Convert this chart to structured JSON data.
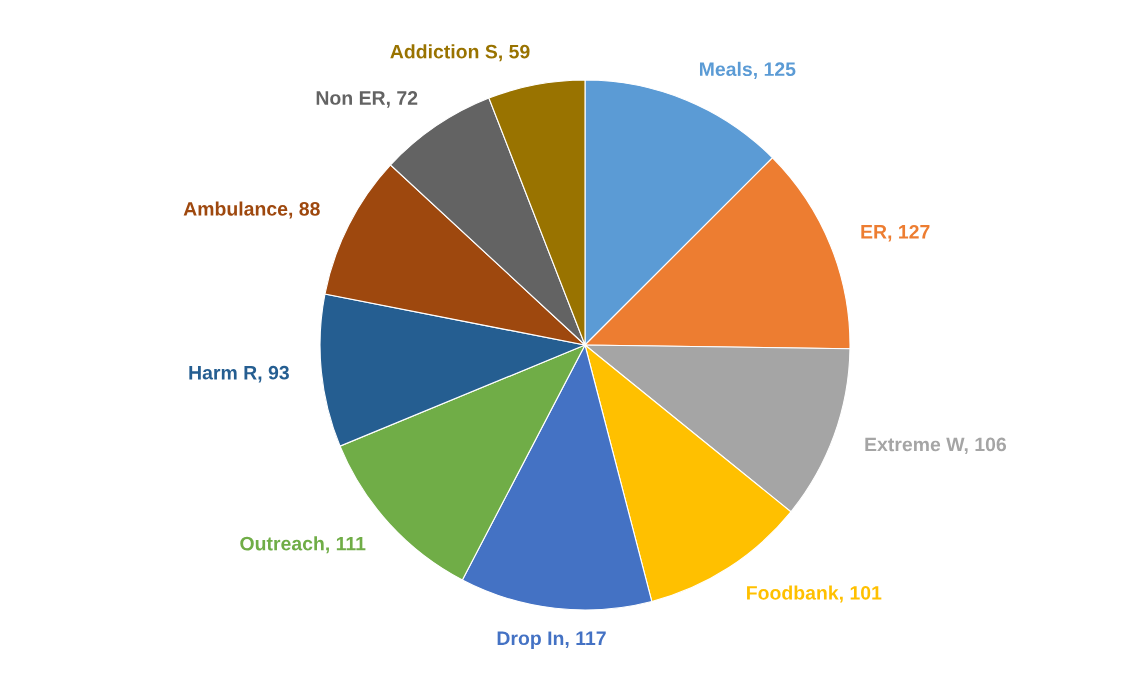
{
  "chart_data": {
    "type": "pie",
    "categories": [
      "Meals, 125",
      "ER, 127",
      "Extreme W, 106",
      "Foodbank, 101",
      "Drop In, 117",
      "Outreach, 111",
      "Harm R, 93",
      "Ambulance, 88",
      "Non ER, 72",
      "Addiction S, 59"
    ],
    "values": [
      125,
      127,
      106,
      101,
      117,
      111,
      93,
      88,
      72,
      59
    ],
    "colors": [
      "#5b9bd5",
      "#ed7d31",
      "#a5a5a5",
      "#ffc000",
      "#4472c4",
      "#70ad47",
      "#255e91",
      "#9e480e",
      "#636363",
      "#997300"
    ]
  }
}
